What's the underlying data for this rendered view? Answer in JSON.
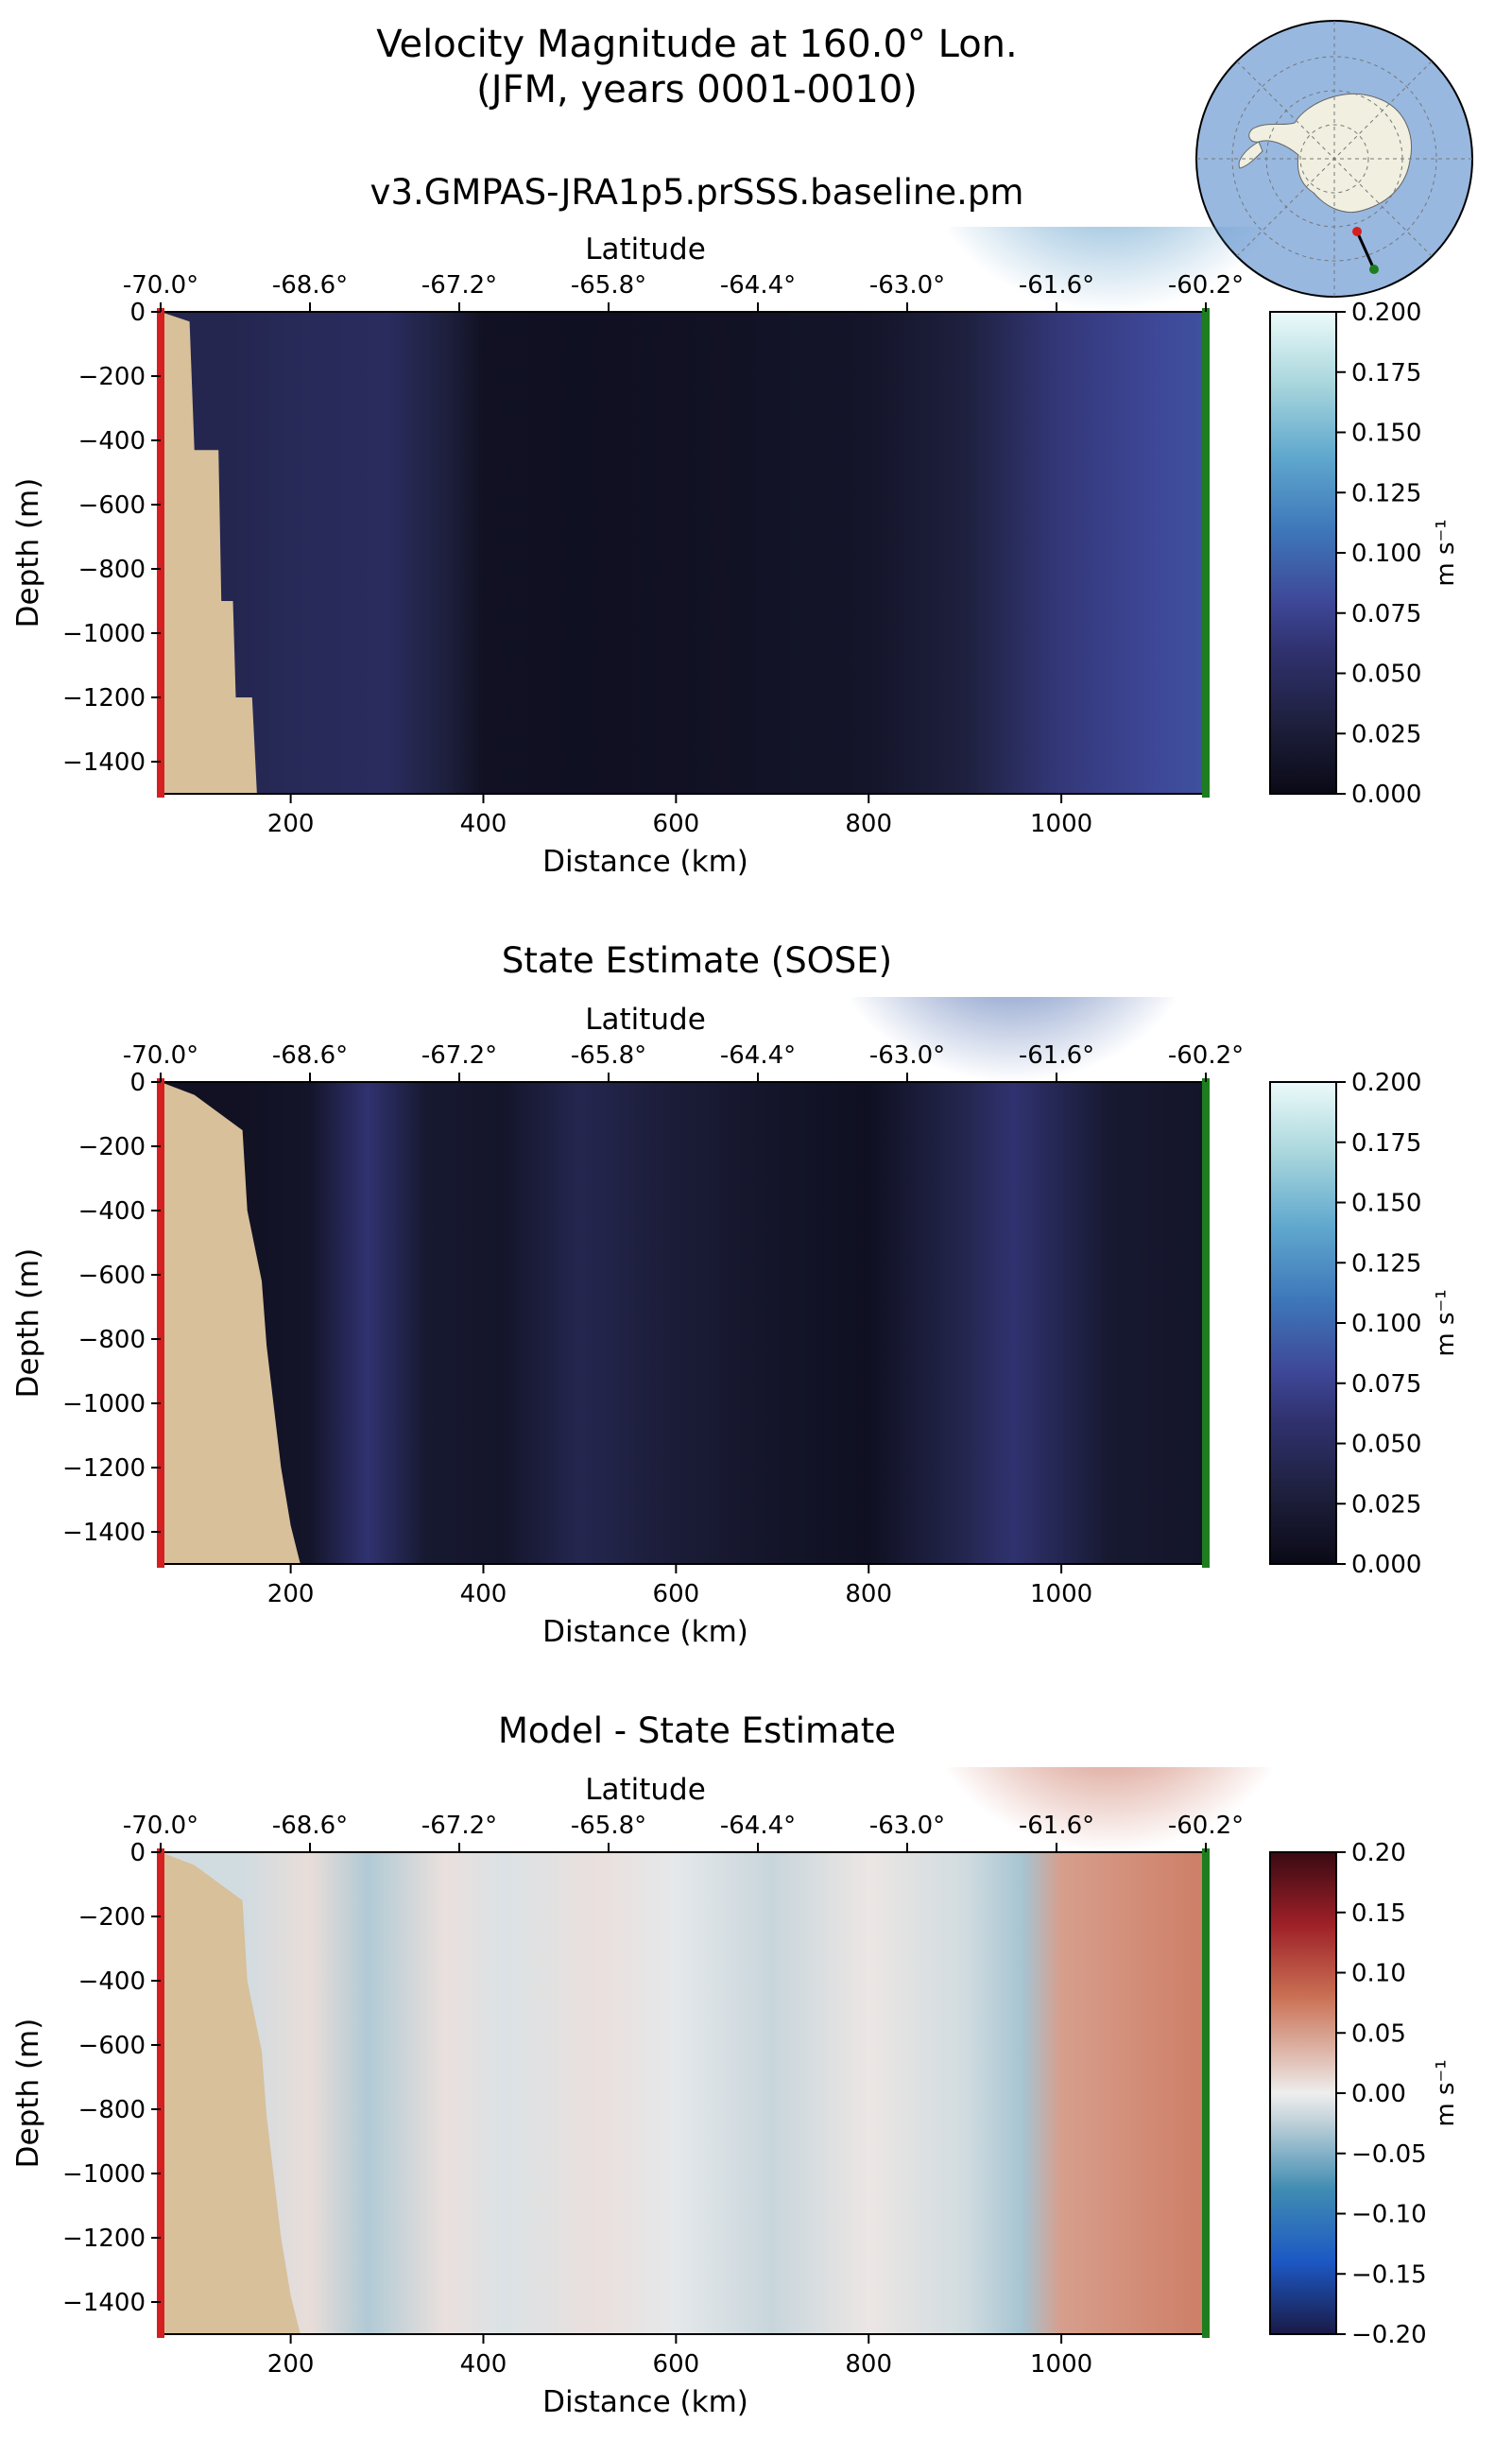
{
  "figure": {
    "title_line1": "Velocity Magnitude at 160.0° Lon.",
    "title_line2": "(JFM, years 0001-0010)"
  },
  "colors": {
    "land": "#d7c09a",
    "left_marker": "#d42020",
    "right_marker": "#1e7d1e",
    "ocean_map": "#98b8e0",
    "continent_map": "#f0efe0"
  },
  "chart_data": [
    {
      "type": "heatmap",
      "panel_title": "v3.GMPAS-JRA1p5.prSSS.baseline.pm",
      "xlabel": "Distance (km)",
      "ylabel": "Depth (m)",
      "top_xlabel": "Latitude",
      "xlim": [
        65,
        1150
      ],
      "ylim": [
        -1500,
        0
      ],
      "x_ticks": [
        "200",
        "400",
        "600",
        "800",
        "1000"
      ],
      "y_ticks": [
        "0",
        "−200",
        "−400",
        "−600",
        "−800",
        "−1000",
        "−1200",
        "−1400"
      ],
      "top_ticks": [
        "-70.0°",
        "-68.6°",
        "-67.2°",
        "-65.8°",
        "-64.4°",
        "-63.0°",
        "-61.6°",
        "-60.2°"
      ],
      "colorbar": {
        "label": "m s⁻¹",
        "ticks": [
          "0.200",
          "0.175",
          "0.150",
          "0.125",
          "0.100",
          "0.075",
          "0.050",
          "0.025",
          "0.000"
        ],
        "cmap": "sequential"
      },
      "column_values": [
        {
          "x": 130,
          "v": 0.04
        },
        {
          "x": 200,
          "v": 0.045
        },
        {
          "x": 300,
          "v": 0.05
        },
        {
          "x": 360,
          "v": 0.03
        },
        {
          "x": 400,
          "v": 0.01
        },
        {
          "x": 500,
          "v": 0.008
        },
        {
          "x": 600,
          "v": 0.01
        },
        {
          "x": 700,
          "v": 0.012
        },
        {
          "x": 800,
          "v": 0.015
        },
        {
          "x": 900,
          "v": 0.03
        },
        {
          "x": 1000,
          "v": 0.065
        },
        {
          "x": 1100,
          "v": 0.08
        },
        {
          "x": 1145,
          "v": 0.085
        }
      ],
      "surface_max": {
        "x": 1050,
        "v": 0.13
      },
      "bathymetry": [
        {
          "x": 65,
          "depth": 0
        },
        {
          "x": 95,
          "depth": 30
        },
        {
          "x": 100,
          "depth": 430
        },
        {
          "x": 125,
          "depth": 430
        },
        {
          "x": 128,
          "depth": 900
        },
        {
          "x": 140,
          "depth": 900
        },
        {
          "x": 143,
          "depth": 1200
        },
        {
          "x": 160,
          "depth": 1200
        },
        {
          "x": 165,
          "depth": 1500
        }
      ]
    },
    {
      "type": "heatmap",
      "panel_title": "State Estimate (SOSE)",
      "xlabel": "Distance (km)",
      "ylabel": "Depth (m)",
      "top_xlabel": "Latitude",
      "xlim": [
        65,
        1150
      ],
      "ylim": [
        -1500,
        0
      ],
      "x_ticks": [
        "200",
        "400",
        "600",
        "800",
        "1000"
      ],
      "y_ticks": [
        "0",
        "−200",
        "−400",
        "−600",
        "−800",
        "−1000",
        "−1200",
        "−1400"
      ],
      "top_ticks": [
        "-70.0°",
        "-68.6°",
        "-67.2°",
        "-65.8°",
        "-64.4°",
        "-63.0°",
        "-61.6°",
        "-60.2°"
      ],
      "colorbar": {
        "label": "m s⁻¹",
        "ticks": [
          "0.200",
          "0.175",
          "0.150",
          "0.125",
          "0.100",
          "0.075",
          "0.050",
          "0.025",
          "0.000"
        ],
        "cmap": "sequential"
      },
      "column_values": [
        {
          "x": 150,
          "v": 0.01
        },
        {
          "x": 220,
          "v": 0.015
        },
        {
          "x": 280,
          "v": 0.06
        },
        {
          "x": 340,
          "v": 0.02
        },
        {
          "x": 420,
          "v": 0.015
        },
        {
          "x": 500,
          "v": 0.04
        },
        {
          "x": 600,
          "v": 0.025
        },
        {
          "x": 700,
          "v": 0.015
        },
        {
          "x": 800,
          "v": 0.008
        },
        {
          "x": 900,
          "v": 0.04
        },
        {
          "x": 950,
          "v": 0.06
        },
        {
          "x": 1050,
          "v": 0.02
        },
        {
          "x": 1145,
          "v": 0.015
        }
      ],
      "surface_max": {
        "x": 950,
        "v": 0.095
      },
      "bathymetry": [
        {
          "x": 65,
          "depth": 0
        },
        {
          "x": 100,
          "depth": 40
        },
        {
          "x": 150,
          "depth": 150
        },
        {
          "x": 155,
          "depth": 400
        },
        {
          "x": 170,
          "depth": 620
        },
        {
          "x": 175,
          "depth": 820
        },
        {
          "x": 190,
          "depth": 1200
        },
        {
          "x": 200,
          "depth": 1380
        },
        {
          "x": 210,
          "depth": 1500
        }
      ]
    },
    {
      "type": "heatmap",
      "panel_title": "Model - State Estimate",
      "xlabel": "Distance (km)",
      "ylabel": "Depth (m)",
      "top_xlabel": "Latitude",
      "xlim": [
        65,
        1150
      ],
      "ylim": [
        -1500,
        0
      ],
      "x_ticks": [
        "200",
        "400",
        "600",
        "800",
        "1000"
      ],
      "y_ticks": [
        "0",
        "−200",
        "−400",
        "−600",
        "−800",
        "−1000",
        "−1200",
        "−1400"
      ],
      "top_ticks": [
        "-70.0°",
        "-68.6°",
        "-67.2°",
        "-65.8°",
        "-64.4°",
        "-63.0°",
        "-61.6°",
        "-60.2°"
      ],
      "colorbar": {
        "label": "m s⁻¹",
        "ticks": [
          "0.20",
          "0.15",
          "0.10",
          "0.05",
          "0.00",
          "−0.05",
          "−0.10",
          "−0.15",
          "−0.20"
        ],
        "cmap": "diverging"
      },
      "column_values": [
        {
          "x": 150,
          "v": -0.015
        },
        {
          "x": 220,
          "v": 0.01
        },
        {
          "x": 280,
          "v": -0.03
        },
        {
          "x": 360,
          "v": 0.008
        },
        {
          "x": 420,
          "v": -0.01
        },
        {
          "x": 520,
          "v": 0.008
        },
        {
          "x": 600,
          "v": -0.005
        },
        {
          "x": 700,
          "v": -0.02
        },
        {
          "x": 800,
          "v": 0.005
        },
        {
          "x": 900,
          "v": -0.015
        },
        {
          "x": 960,
          "v": -0.035
        },
        {
          "x": 1000,
          "v": 0.05
        },
        {
          "x": 1145,
          "v": 0.07
        }
      ],
      "surface_max": {
        "x": 1050,
        "v": 0.09
      },
      "bathymetry": [
        {
          "x": 65,
          "depth": 0
        },
        {
          "x": 100,
          "depth": 40
        },
        {
          "x": 150,
          "depth": 150
        },
        {
          "x": 155,
          "depth": 400
        },
        {
          "x": 170,
          "depth": 620
        },
        {
          "x": 175,
          "depth": 820
        },
        {
          "x": 190,
          "depth": 1200
        },
        {
          "x": 200,
          "depth": 1380
        },
        {
          "x": 210,
          "depth": 1500
        }
      ]
    }
  ]
}
